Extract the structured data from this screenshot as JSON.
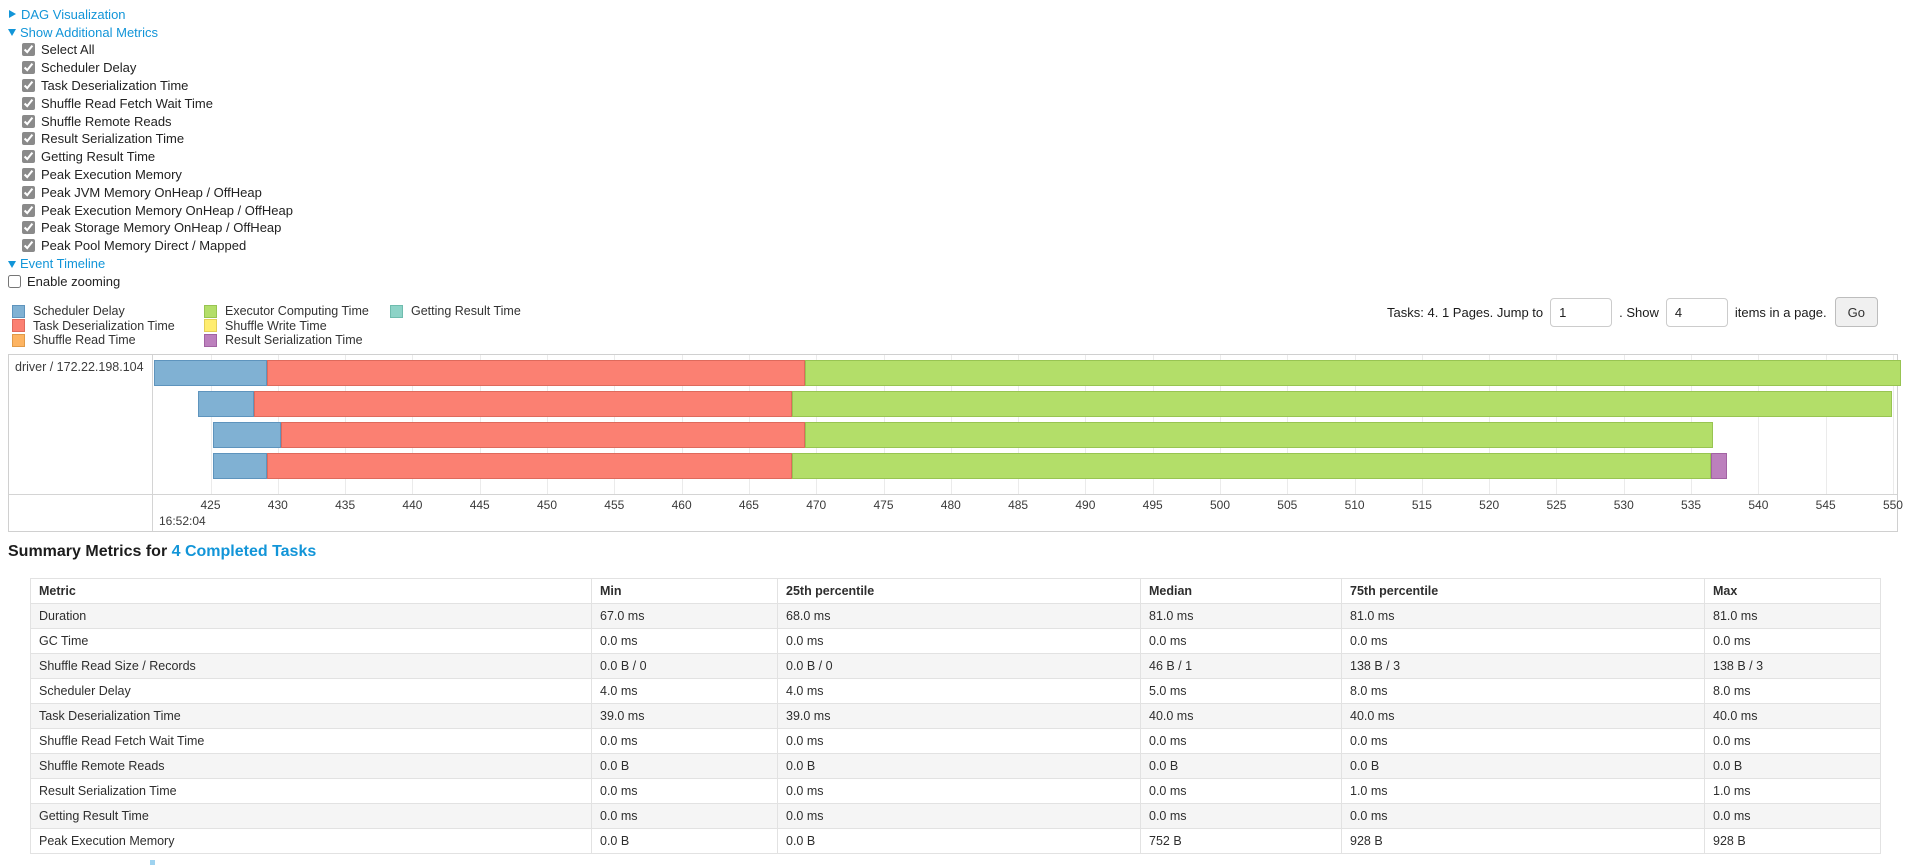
{
  "links": {
    "dag": "DAG Visualization",
    "metrics": "Show Additional Metrics",
    "event_timeline": "Event Timeline"
  },
  "enable_zooming": {
    "label": "Enable zooming",
    "checked": false
  },
  "metric_checkboxes": [
    "Select All",
    "Scheduler Delay",
    "Task Deserialization Time",
    "Shuffle Read Fetch Wait Time",
    "Shuffle Remote Reads",
    "Result Serialization Time",
    "Getting Result Time",
    "Peak Execution Memory",
    "Peak JVM Memory OnHeap / OffHeap",
    "Peak Execution Memory OnHeap / OffHeap",
    "Peak Storage Memory OnHeap / OffHeap",
    "Peak Pool Memory Direct / Mapped"
  ],
  "segment_colors": {
    "scheduler_delay": {
      "fill": "#80B1D3",
      "border": "#5e94bd"
    },
    "task_deserialization": {
      "fill": "#FB8072",
      "border": "#de6a5c"
    },
    "shuffle_read": {
      "fill": "#FDB462",
      "border": "#e09a48"
    },
    "executor_computing": {
      "fill": "#B3DE69",
      "border": "#98c452"
    },
    "shuffle_write": {
      "fill": "#FFED6F",
      "border": "#e3cf57"
    },
    "result_serialization": {
      "fill": "#BC80BD",
      "border": "#a263a3"
    },
    "getting_result": {
      "fill": "#8DD3C7",
      "border": "#6fbcae"
    }
  },
  "legend": {
    "columns": [
      [
        {
          "type": "scheduler_delay",
          "label": "Scheduler Delay"
        },
        {
          "type": "task_deserialization",
          "label": "Task Deserialization Time"
        },
        {
          "type": "shuffle_read",
          "label": "Shuffle Read Time"
        }
      ],
      [
        {
          "type": "executor_computing",
          "label": "Executor Computing Time"
        },
        {
          "type": "shuffle_write",
          "label": "Shuffle Write Time"
        },
        {
          "type": "result_serialization",
          "label": "Result Serialization Time"
        }
      ],
      [
        {
          "type": "getting_result",
          "label": "Getting Result Time"
        }
      ]
    ]
  },
  "pagination": {
    "tasks_text": "Tasks: 4. 1 Pages. Jump to",
    "jump_value": "1",
    "show_text": ". Show",
    "show_value": "4",
    "items_text": "items in a page.",
    "go_label": "Go"
  },
  "timeline": {
    "row_label": "driver / 172.22.198.104",
    "major_label": "16:52:04",
    "axis": {
      "min": 420.8,
      "max": 550.3,
      "tick_start": 425,
      "tick_end": 550,
      "tick_step": 5
    },
    "tasks": [
      {
        "segments": [
          {
            "type": "scheduler_delay",
            "from": 420.8,
            "to": 429.2
          },
          {
            "type": "task_deserialization",
            "from": 429.2,
            "to": 469.2
          },
          {
            "type": "executor_computing",
            "from": 469.2,
            "to": 550.6
          }
        ]
      },
      {
        "segments": [
          {
            "type": "scheduler_delay",
            "from": 424.1,
            "to": 428.2
          },
          {
            "type": "task_deserialization",
            "from": 428.2,
            "to": 468.2
          },
          {
            "type": "executor_computing",
            "from": 468.2,
            "to": 549.9
          }
        ]
      },
      {
        "segments": [
          {
            "type": "scheduler_delay",
            "from": 425.2,
            "to": 430.2
          },
          {
            "type": "task_deserialization",
            "from": 430.2,
            "to": 469.2
          },
          {
            "type": "executor_computing",
            "from": 469.2,
            "to": 536.6
          }
        ]
      },
      {
        "segments": [
          {
            "type": "scheduler_delay",
            "from": 425.2,
            "to": 429.2
          },
          {
            "type": "task_deserialization",
            "from": 429.2,
            "to": 468.2
          },
          {
            "type": "executor_computing",
            "from": 468.2,
            "to": 536.5
          },
          {
            "type": "result_serialization",
            "from": 536.5,
            "to": 537.7
          }
        ]
      }
    ]
  },
  "summary": {
    "title_prefix": "Summary Metrics for ",
    "title_link": "4 Completed Tasks",
    "headers": [
      "Metric",
      "Min",
      "25th percentile",
      "Median",
      "75th percentile",
      "Max"
    ],
    "rows": [
      [
        "Duration",
        "67.0 ms",
        "68.0 ms",
        "81.0 ms",
        "81.0 ms",
        "81.0 ms"
      ],
      [
        "GC Time",
        "0.0 ms",
        "0.0 ms",
        "0.0 ms",
        "0.0 ms",
        "0.0 ms"
      ],
      [
        "Shuffle Read Size / Records",
        "0.0 B / 0",
        "0.0 B / 0",
        "46 B / 1",
        "138 B / 3",
        "138 B / 3"
      ],
      [
        "Scheduler Delay",
        "4.0 ms",
        "4.0 ms",
        "5.0 ms",
        "8.0 ms",
        "8.0 ms"
      ],
      [
        "Task Deserialization Time",
        "39.0 ms",
        "39.0 ms",
        "40.0 ms",
        "40.0 ms",
        "40.0 ms"
      ],
      [
        "Shuffle Read Fetch Wait Time",
        "0.0 ms",
        "0.0 ms",
        "0.0 ms",
        "0.0 ms",
        "0.0 ms"
      ],
      [
        "Shuffle Remote Reads",
        "0.0 B",
        "0.0 B",
        "0.0 B",
        "0.0 B",
        "0.0 B"
      ],
      [
        "Result Serialization Time",
        "0.0 ms",
        "0.0 ms",
        "0.0 ms",
        "1.0 ms",
        "1.0 ms"
      ],
      [
        "Getting Result Time",
        "0.0 ms",
        "0.0 ms",
        "0.0 ms",
        "0.0 ms",
        "0.0 ms"
      ],
      [
        "Peak Execution Memory",
        "0.0 B",
        "0.0 B",
        "752 B",
        "928 B",
        "928 B"
      ]
    ]
  }
}
